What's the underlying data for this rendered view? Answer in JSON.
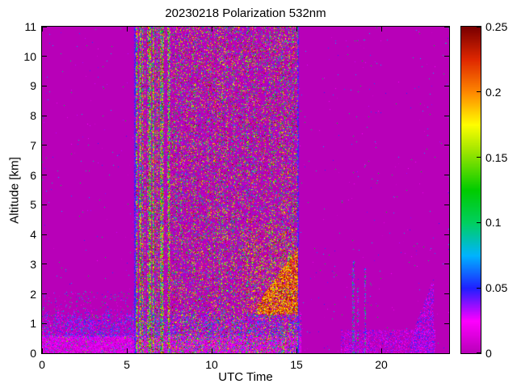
{
  "chart_data": {
    "type": "heatmap",
    "title": "20230218 Polarization 532nm",
    "xlabel": "UTC Time",
    "ylabel": "Altitude [km]",
    "xlim": [
      0,
      24
    ],
    "ylim": [
      0,
      11
    ],
    "xticks": [
      0,
      5,
      10,
      15,
      20
    ],
    "xtick_labels": [
      "0",
      "5",
      "10",
      "15",
      "20"
    ],
    "yticks": [
      0,
      1,
      2,
      3,
      4,
      5,
      6,
      7,
      8,
      9,
      10,
      11
    ],
    "ytick_labels": [
      "0",
      "1",
      "2",
      "3",
      "4",
      "5",
      "6",
      "7",
      "8",
      "9",
      "10",
      "11"
    ],
    "colorbar": {
      "min": 0,
      "max": 0.25,
      "ticks": [
        0,
        0.05,
        0.1,
        0.15,
        0.2,
        0.25
      ],
      "tick_labels": [
        "0",
        "0.05",
        "0.1",
        "0.15",
        "0.2",
        "0.25"
      ]
    },
    "colormap": [
      {
        "t": 0.0,
        "c": "#b800b8"
      },
      {
        "t": 0.1,
        "c": "#ff00ff"
      },
      {
        "t": 0.2,
        "c": "#2020ff"
      },
      {
        "t": 0.3,
        "c": "#00b4ff"
      },
      {
        "t": 0.4,
        "c": "#00d060"
      },
      {
        "t": 0.5,
        "c": "#00cc00"
      },
      {
        "t": 0.62,
        "c": "#a0e600"
      },
      {
        "t": 0.7,
        "c": "#ffff00"
      },
      {
        "t": 0.8,
        "c": "#ff8800"
      },
      {
        "t": 0.9,
        "c": "#e02800"
      },
      {
        "t": 1.0,
        "c": "#7a0000"
      }
    ],
    "background_value": 0,
    "regions": [
      {
        "name": "background-speckle",
        "x": [
          0,
          24
        ],
        "y": [
          0,
          11
        ],
        "density": 0.004,
        "v": [
          0.0,
          0.12
        ]
      },
      {
        "name": "surface-aerosol-band",
        "x": [
          0,
          15.3
        ],
        "y": [
          0,
          0.6
        ],
        "density": 0.92,
        "v": [
          0.0,
          0.035
        ]
      },
      {
        "name": "surface-band-speckle",
        "x": [
          0,
          15.3
        ],
        "y": [
          0,
          1.3
        ],
        "density": 0.07,
        "v": [
          0.04,
          0.16
        ]
      },
      {
        "name": "boundary-layer-top",
        "x": [
          0,
          15.3
        ],
        "y": [
          0.55,
          1.5
        ],
        "density": 0.42,
        "v": [
          0.0,
          0.07
        ],
        "edge": true
      },
      {
        "name": "sparse-speckle-left",
        "x": [
          0,
          5.5
        ],
        "y": [
          1.4,
          2.1
        ],
        "density": 0.05,
        "v": [
          0.0,
          0.12
        ]
      },
      {
        "name": "edge-line-left",
        "x": [
          5.45,
          5.56
        ],
        "y": [
          0,
          11
        ],
        "density": 0.85,
        "v": [
          0.035,
          0.055
        ]
      },
      {
        "name": "edge-line-right",
        "x": [
          15.05,
          15.16
        ],
        "y": [
          0,
          11
        ],
        "density": 0.85,
        "v": [
          0.035,
          0.055
        ]
      },
      {
        "name": "noise-columns-dense",
        "x": [
          5.5,
          7.6
        ],
        "y": [
          0,
          11
        ],
        "density": 0.55,
        "v": [
          0.01,
          0.25
        ],
        "columns": "strong"
      },
      {
        "name": "noise-columns-moderate",
        "x": [
          7.6,
          15.1
        ],
        "y": [
          0,
          11
        ],
        "density": 0.26,
        "v": [
          0.01,
          0.25
        ],
        "columns": "mild"
      },
      {
        "name": "plume-halo",
        "x": [
          11.8,
          15.1
        ],
        "y": [
          1.3,
          4.3
        ],
        "density": 0.12,
        "v": [
          0.14,
          0.25
        ]
      },
      {
        "name": "depolarization-plume",
        "x": [
          12.7,
          15.1
        ],
        "y": [
          1.3,
          3.6
        ],
        "density": 0.72,
        "v": [
          0.17,
          0.25
        ],
        "wedge": true,
        "wedge_start": 0.4
      },
      {
        "name": "evening-surface-band",
        "x": [
          17.6,
          23.2
        ],
        "y": [
          0,
          0.8
        ],
        "density": 0.42,
        "v": [
          0.0,
          0.05
        ]
      },
      {
        "name": "evening-spike-1",
        "x": [
          18.3,
          18.42
        ],
        "y": [
          0,
          3.1
        ],
        "density": 0.5,
        "v": [
          0.0,
          0.13
        ]
      },
      {
        "name": "evening-spike-2",
        "x": [
          18.55,
          18.66
        ],
        "y": [
          0,
          2.2
        ],
        "density": 0.5,
        "v": [
          0.0,
          0.13
        ]
      },
      {
        "name": "evening-spike-3",
        "x": [
          19.0,
          19.1
        ],
        "y": [
          0,
          2.9
        ],
        "density": 0.5,
        "v": [
          0.0,
          0.13
        ]
      },
      {
        "name": "evening-plume",
        "x": [
          21.7,
          23.1
        ],
        "y": [
          0,
          2.6
        ],
        "density": 0.45,
        "v": [
          0.0,
          0.06
        ],
        "wedge": true,
        "wedge_start": 0.5
      }
    ]
  }
}
